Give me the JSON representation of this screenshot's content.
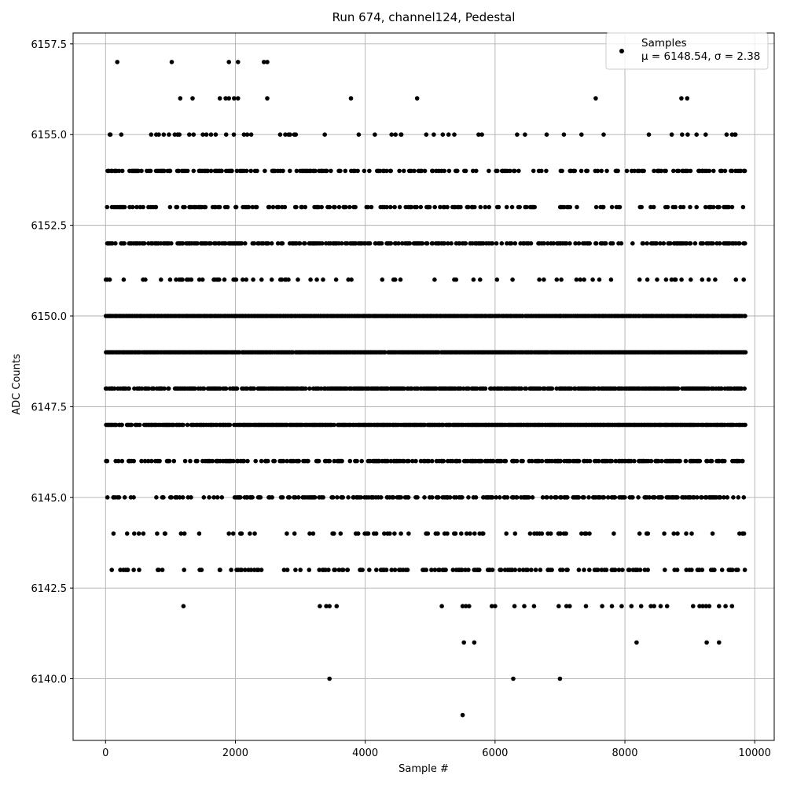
{
  "chart_data": {
    "type": "scatter",
    "title": "Run 674, channel124, Pedestal",
    "xlabel": "Sample #",
    "ylabel": "ADC Counts",
    "xlim": [
      -500,
      10300
    ],
    "ylim": [
      6138.3,
      6157.8
    ],
    "x_ticks": [
      0,
      2000,
      4000,
      6000,
      8000,
      10000
    ],
    "x_tick_labels": [
      "0",
      "2000",
      "4000",
      "6000",
      "8000",
      "10000"
    ],
    "y_ticks": [
      6140.0,
      6142.5,
      6145.0,
      6147.5,
      6150.0,
      6152.5,
      6155.0,
      6157.5
    ],
    "y_tick_labels": [
      "6140.0",
      "6142.5",
      "6145.0",
      "6147.5",
      "6150.0",
      "6152.5",
      "6155.0",
      "6157.5"
    ],
    "grid": true,
    "legend_position": "top-right",
    "marker_color": "#000000",
    "series": [
      {
        "name": "Samples",
        "stats_label": "μ = 6148.54, σ = 2.38",
        "mu": 6148.54,
        "sigma": 2.38,
        "levels": [
          {
            "y": 6139,
            "x": [
              5500
            ]
          },
          {
            "y": 6140,
            "x": [
              3450,
              6280,
              7000
            ]
          },
          {
            "y": 6141,
            "x": [
              5520,
              5680,
              8180,
              9260,
              9450
            ]
          },
          {
            "y": 6157,
            "x": [
              180,
              1020,
              1900,
              2040,
              2440,
              2490
            ]
          },
          {
            "y": 6156,
            "x": [
              1150,
              1340,
              1760,
              1850,
              1900,
              1980,
              2040,
              2490,
              3780,
              4800,
              7550,
              8870,
              8960
            ]
          },
          {
            "y": 6142,
            "x": [
              1200,
              3300,
              3400,
              3450,
              3560,
              5180,
              5500,
              5550,
              5600,
              5950,
              6000,
              6300,
              6450,
              6600,
              6980,
              7100,
              7150,
              7400,
              7650,
              7800,
              7950,
              8100,
              8250,
              8400,
              8450,
              8550,
              8650,
              9050,
              9150,
              9200,
              9250,
              9300,
              9450,
              9550,
              9650
            ]
          }
        ],
        "dense_levels": [
          {
            "y": 6143,
            "n": 260,
            "density": [
              [
                "0",
                "2000",
                18
              ],
              [
                "2000",
                "5000",
                26
              ],
              [
                "5000",
                "7000",
                40
              ],
              [
                "7000",
                "9000",
                32
              ],
              [
                "9000",
                "9850",
                38
              ]
            ]
          },
          {
            "y": 6144,
            "n": 100,
            "density": [
              [
                "0",
                "2000",
                12
              ],
              [
                "2000",
                "5000",
                14
              ],
              [
                "5000",
                "7000",
                14
              ],
              [
                "7000",
                "9000",
                18
              ],
              [
                "9000",
                "9850",
                10
              ]
            ]
          },
          {
            "y": 6145,
            "n": 620,
            "density": [
              [
                "0",
                "2000",
                20
              ],
              [
                "2000",
                "5000",
                46
              ],
              [
                "5000",
                "7000",
                50
              ],
              [
                "7000",
                "9000",
                58
              ],
              [
                "9000",
                "9850",
                50
              ]
            ]
          },
          {
            "y": 6146,
            "n": 860,
            "density": [
              [
                "0",
                "2000",
                40
              ],
              [
                "2000",
                "5000",
                46
              ],
              [
                "5000",
                "7000",
                56
              ],
              [
                "7000",
                "9000",
                60
              ],
              [
                "9000",
                "9850",
                52
              ]
            ]
          },
          {
            "y": 6147,
            "n": 1800,
            "density": [
              [
                "0",
                "2000",
                80
              ],
              [
                "2000",
                "5000",
                90
              ],
              [
                "5000",
                "7000",
                96
              ],
              [
                "7000",
                "9000",
                100
              ],
              [
                "9000",
                "9850",
                90
              ]
            ]
          },
          {
            "y": 6148,
            "n": 1500,
            "density": [
              [
                "0",
                "2000",
                66
              ],
              [
                "2000",
                "5000",
                84
              ],
              [
                "5000",
                "7000",
                74
              ],
              [
                "7000",
                "9000",
                84
              ],
              [
                "9000",
                "9850",
                66
              ]
            ]
          },
          {
            "y": 6149,
            "n": 1900,
            "density": [
              [
                "0",
                "2000",
                96
              ],
              [
                "2000",
                "5000",
                96
              ],
              [
                "5000",
                "7000",
                94
              ],
              [
                "7000",
                "9000",
                100
              ],
              [
                "9000",
                "9850",
                96
              ]
            ]
          },
          {
            "y": 6150,
            "n": 1900,
            "density": [
              [
                "0",
                "2000",
                100
              ],
              [
                "2000",
                "5000",
                100
              ],
              [
                "5000",
                "7000",
                94
              ],
              [
                "7000",
                "9000",
                96
              ],
              [
                "9000",
                "9850",
                96
              ]
            ]
          },
          {
            "y": 6151,
            "n": 200,
            "density": [
              [
                "0",
                "2000",
                20
              ],
              [
                "2000",
                "5000",
                14
              ],
              [
                "5000",
                "7000",
                12
              ],
              [
                "7000",
                "9000",
                8
              ],
              [
                "9000",
                "9850",
                10
              ]
            ]
          },
          {
            "y": 6152,
            "n": 900,
            "density": [
              [
                "0",
                "2000",
                60
              ],
              [
                "2000",
                "5000",
                54
              ],
              [
                "5000",
                "7000",
                50
              ],
              [
                "7000",
                "9000",
                44
              ],
              [
                "9000",
                "9850",
                52
              ]
            ]
          },
          {
            "y": 6153,
            "n": 520,
            "density": [
              [
                "0",
                "2000",
                44
              ],
              [
                "2000",
                "5000",
                34
              ],
              [
                "5000",
                "7000",
                26
              ],
              [
                "7000",
                "9000",
                26
              ],
              [
                "9000",
                "9850",
                28
              ]
            ]
          },
          {
            "y": 6154,
            "n": 520,
            "density": [
              [
                "0",
                "2000",
                40
              ],
              [
                "2000",
                "5000",
                38
              ],
              [
                "5000",
                "7000",
                22
              ],
              [
                "7000",
                "9000",
                30
              ],
              [
                "9000",
                "9850",
                30
              ]
            ]
          },
          {
            "y": 6155,
            "n": 110,
            "density": [
              [
                "0",
                "2000",
                16
              ],
              [
                "2000",
                "5000",
                10
              ],
              [
                "5000",
                "7000",
                10
              ],
              [
                "7000",
                "9000",
                4
              ],
              [
                "9000",
                "9850",
                6
              ]
            ]
          }
        ]
      }
    ]
  }
}
